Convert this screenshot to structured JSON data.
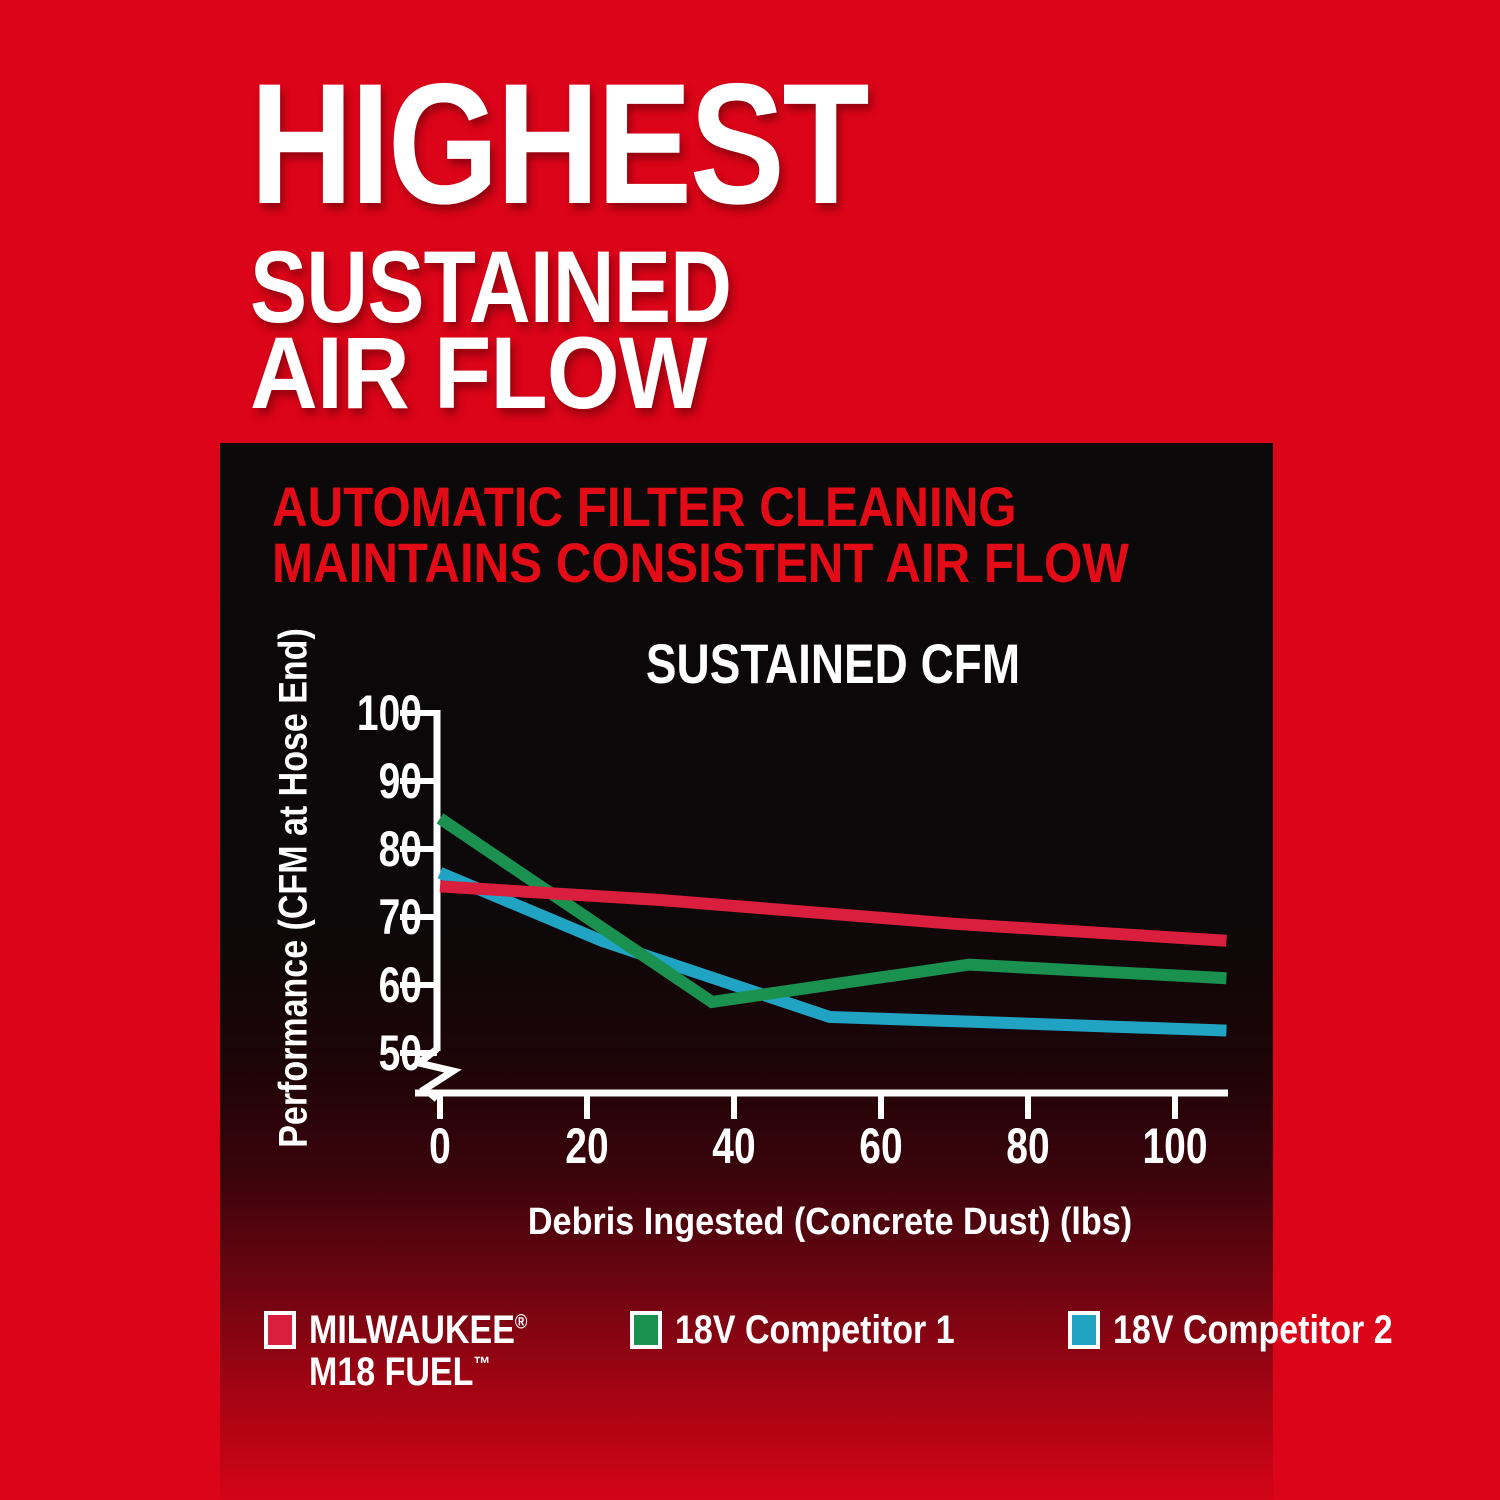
{
  "page": {
    "background_color": "#dc0418",
    "heading_line1": "HIGHEST",
    "heading_line2": "SUSTAINED",
    "heading_line3": "AIR FLOW"
  },
  "panel": {
    "headline_line1": "AUTOMATIC FILTER CLEANING",
    "headline_line2": "MAINTAINS CONSISTENT AIR FLOW",
    "headline_color": "#e30b16"
  },
  "chart_data": {
    "type": "line",
    "title": "SUSTAINED CFM",
    "xlabel": "Debris Ingested (Concrete Dust) (lbs)",
    "ylabel": "Performance (CFM at Hose End)",
    "xlim": [
      0,
      108
    ],
    "ylim": [
      50,
      100
    ],
    "y_axis_break": true,
    "grid": false,
    "x_ticks": [
      0,
      20,
      40,
      60,
      80,
      100
    ],
    "y_ticks": [
      100,
      90,
      80,
      70,
      60,
      50
    ],
    "axis_color": "#ffffff",
    "legend_position": "bottom",
    "series": [
      {
        "name": "MILWAUKEE® M18 FUEL™",
        "color": "#da1f3e",
        "points": [
          [
            0,
            74.5
          ],
          [
            30,
            72.5
          ],
          [
            70,
            69
          ],
          [
            107,
            66.5
          ]
        ]
      },
      {
        "name": "18V Competitor 1",
        "color": "#1b9150",
        "points": [
          [
            0,
            84.5
          ],
          [
            37,
            57.5
          ],
          [
            72,
            63
          ],
          [
            107,
            61
          ]
        ]
      },
      {
        "name": "18V Competitor 2",
        "color": "#21a3c4",
        "points": [
          [
            0,
            76.5
          ],
          [
            22,
            66.5
          ],
          [
            53,
            55.3
          ],
          [
            75,
            54.5
          ],
          [
            107,
            53.3
          ]
        ]
      }
    ],
    "legend": [
      {
        "lines": [
          {
            "text": "MILWAUKEE",
            "sup": "®"
          },
          {
            "text": "M18 FUEL",
            "sup": "™"
          }
        ],
        "color": "#da1f3e"
      },
      {
        "lines": [
          {
            "text": "18V Competitor 1"
          }
        ],
        "color": "#1b9150"
      },
      {
        "lines": [
          {
            "text": "18V Competitor 2"
          }
        ],
        "color": "#21a3c4"
      }
    ]
  }
}
